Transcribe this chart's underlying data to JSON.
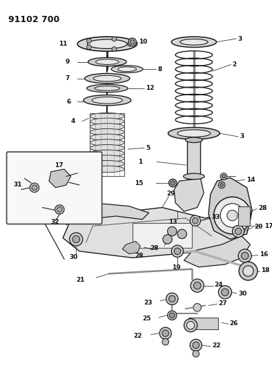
{
  "title": "91102 700",
  "bg_color": "#ffffff",
  "lc": "#1a1a1a",
  "tc": "#111111",
  "fig_width": 3.94,
  "fig_height": 5.33,
  "dpi": 100
}
